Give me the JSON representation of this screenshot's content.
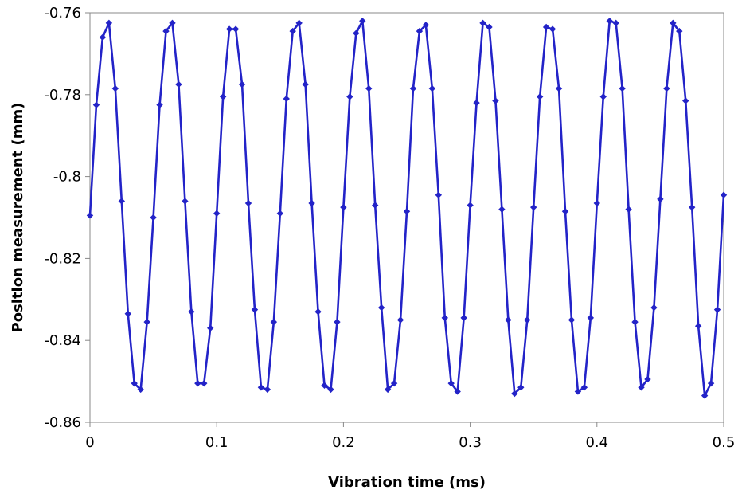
{
  "chart_data": {
    "type": "line",
    "title": "",
    "xlabel": "Vibration time (ms)",
    "ylabel": "Position measurement (mm)",
    "xlim": [
      0,
      0.5
    ],
    "ylim": [
      -0.86,
      -0.76
    ],
    "x_ticks": [
      0,
      0.1,
      0.2,
      0.3,
      0.4,
      0.5
    ],
    "x_tick_labels": [
      "0",
      "0.1",
      "0.2",
      "0.3",
      "0.4",
      "0.5"
    ],
    "y_ticks": [
      -0.76,
      -0.78,
      -0.8,
      -0.82,
      -0.84,
      -0.86
    ],
    "y_tick_labels": [
      "-0.76",
      "-0.78",
      "-0.8",
      "-0.82",
      "-0.84",
      "-0.86"
    ],
    "grid": false,
    "legend": "none",
    "marker": "diamond",
    "series_color": "#2323C8",
    "series": [
      {
        "x": [
          0,
          0.005,
          0.01,
          0.015,
          0.02,
          0.025,
          0.03,
          0.035,
          0.04,
          0.045,
          0.05,
          0.055,
          0.06,
          0.065,
          0.07,
          0.075,
          0.08,
          0.085,
          0.09,
          0.095,
          0.1,
          0.105,
          0.11,
          0.115,
          0.12,
          0.125,
          0.13,
          0.135,
          0.14,
          0.145,
          0.15,
          0.155,
          0.16,
          0.165,
          0.17,
          0.175,
          0.18,
          0.185,
          0.19,
          0.195,
          0.2,
          0.205,
          0.21,
          0.215,
          0.22,
          0.225,
          0.23,
          0.235,
          0.24,
          0.245,
          0.25,
          0.255,
          0.26,
          0.265,
          0.27,
          0.275,
          0.28,
          0.285,
          0.29,
          0.295,
          0.3,
          0.305,
          0.31,
          0.315,
          0.32,
          0.325,
          0.33,
          0.335,
          0.34,
          0.345,
          0.35,
          0.355,
          0.36,
          0.365,
          0.37,
          0.375,
          0.38,
          0.385,
          0.39,
          0.395,
          0.4,
          0.405,
          0.41,
          0.415,
          0.42,
          0.425,
          0.43,
          0.435,
          0.44,
          0.445,
          0.45,
          0.455,
          0.46,
          0.465,
          0.47,
          0.475,
          0.48,
          0.485,
          0.49,
          0.495,
          0.5
        ],
        "values": [
          -0.8095,
          -0.7825,
          -0.766,
          -0.7625,
          -0.7785,
          -0.806,
          -0.8335,
          -0.8505,
          -0.852,
          -0.8355,
          -0.81,
          -0.7825,
          -0.7645,
          -0.7625,
          -0.7775,
          -0.806,
          -0.833,
          -0.8505,
          -0.8505,
          -0.837,
          -0.809,
          -0.7805,
          -0.764,
          -0.764,
          -0.7775,
          -0.8065,
          -0.8325,
          -0.8515,
          -0.852,
          -0.8355,
          -0.809,
          -0.781,
          -0.7645,
          -0.7625,
          -0.7775,
          -0.8065,
          -0.833,
          -0.851,
          -0.852,
          -0.8355,
          -0.8075,
          -0.7805,
          -0.765,
          -0.762,
          -0.7785,
          -0.807,
          -0.832,
          -0.852,
          -0.8505,
          -0.835,
          -0.8085,
          -0.7785,
          -0.7645,
          -0.763,
          -0.7785,
          -0.8045,
          -0.8345,
          -0.8505,
          -0.8525,
          -0.8345,
          -0.807,
          -0.782,
          -0.7625,
          -0.7635,
          -0.7815,
          -0.808,
          -0.835,
          -0.853,
          -0.8515,
          -0.835,
          -0.8075,
          -0.7805,
          -0.7635,
          -0.764,
          -0.7785,
          -0.8085,
          -0.835,
          -0.8525,
          -0.8515,
          -0.8345,
          -0.8065,
          -0.7805,
          -0.762,
          -0.7625,
          -0.7785,
          -0.808,
          -0.8355,
          -0.8515,
          -0.8495,
          -0.832,
          -0.8055,
          -0.7785,
          -0.7625,
          -0.7645,
          -0.7815,
          -0.8075,
          -0.8365,
          -0.8535,
          -0.8505,
          -0.8325,
          -0.8045
        ]
      }
    ]
  }
}
